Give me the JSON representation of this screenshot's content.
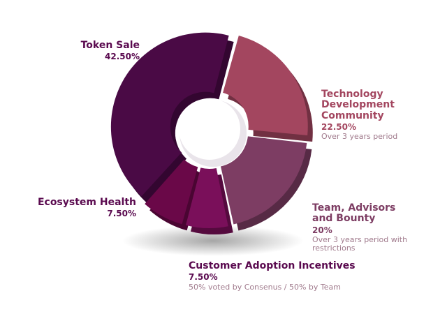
{
  "chart_data": {
    "type": "donut",
    "categories": [
      "Token Sale",
      "Technology Development Community",
      "Team, Advisors and Bounty",
      "Customer Adoption Incentives",
      "Ecosystem Health"
    ],
    "values": [
      42.5,
      22.5,
      20,
      7.5,
      7.5
    ],
    "value_labels": [
      "42.50%",
      "22.50%",
      "20%",
      "7.50%",
      "7.50%"
    ],
    "notes": [
      null,
      "Over 3 years period",
      "Over 3 years period with restrictions",
      "50%  voted by Consenus / 50% by Team",
      null
    ],
    "colors": [
      "#4a0a45",
      "#a3465f",
      "#7d3d63",
      "#7a0f5a",
      "#6a0848"
    ],
    "label_colors": [
      "#5a0a4f",
      "#a3465f",
      "#7d3d63",
      "#5a0a4f",
      "#5a0a4f"
    ]
  }
}
